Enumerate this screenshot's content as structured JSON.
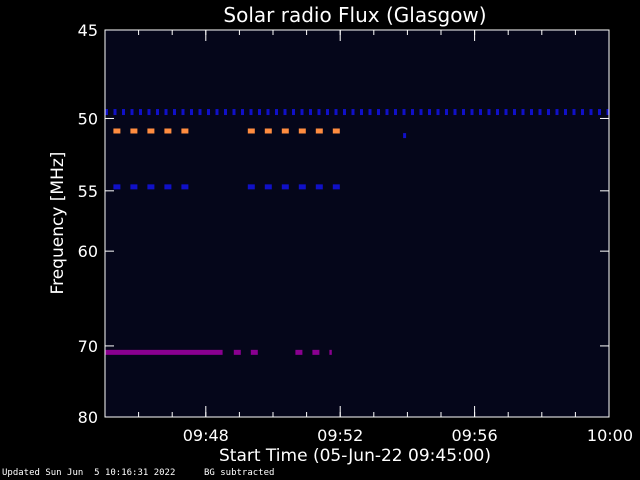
{
  "chart_data": {
    "type": "heatmap",
    "title": "Solar radio Flux (Glasgow)",
    "ylabel": "Frequency [MHz]",
    "xlabel": "Start Time (05-Jun-22 09:45:00)",
    "x_unit": "time",
    "xlim": [
      "09:45:00",
      "10:00:00"
    ],
    "ylim": [
      45,
      80
    ],
    "y_ticks": [
      45,
      50,
      55,
      60,
      70,
      80
    ],
    "x_ticks": [
      "09:48",
      "09:52",
      "09:56",
      "10:00"
    ],
    "colors": {
      "background": "#000000",
      "plot_background": "#05061a",
      "low": "#1010c8",
      "mid": "#8a0090",
      "high": "#ff8c40",
      "frame": "#ffffff"
    },
    "features": [
      {
        "freq_mhz": 49.6,
        "time_start": "09:45:00",
        "time_end": "10:00:00",
        "intensity": "low",
        "pattern": "dotted"
      },
      {
        "freq_mhz": 50.8,
        "time_start": "09:45:15",
        "time_end": "09:47:30",
        "intensity": "high",
        "pattern": "dashed"
      },
      {
        "freq_mhz": 50.8,
        "time_start": "09:49:15",
        "time_end": "09:52:00",
        "intensity": "high",
        "pattern": "dashed"
      },
      {
        "freq_mhz": 54.7,
        "time_start": "09:45:15",
        "time_end": "09:47:30",
        "intensity": "low",
        "pattern": "dashed"
      },
      {
        "freq_mhz": 54.7,
        "time_start": "09:49:15",
        "time_end": "09:52:00",
        "intensity": "low",
        "pattern": "dashed"
      },
      {
        "freq_mhz": 70.8,
        "time_start": "09:45:00",
        "time_end": "09:48:30",
        "intensity": "mid",
        "pattern": "solid"
      },
      {
        "freq_mhz": 70.8,
        "time_start": "09:48:50",
        "time_end": "09:49:50",
        "intensity": "mid",
        "pattern": "dashed"
      },
      {
        "freq_mhz": 70.8,
        "time_start": "09:50:40",
        "time_end": "09:51:45",
        "intensity": "mid",
        "pattern": "dashed"
      },
      {
        "freq_mhz": 51.1,
        "time_start": "09:53:55",
        "time_end": "09:54:00",
        "intensity": "low",
        "pattern": "dot"
      }
    ]
  },
  "footer": {
    "updated": "Updated Sun Jun  5 10:16:31 2022",
    "note": "BG subtracted"
  }
}
